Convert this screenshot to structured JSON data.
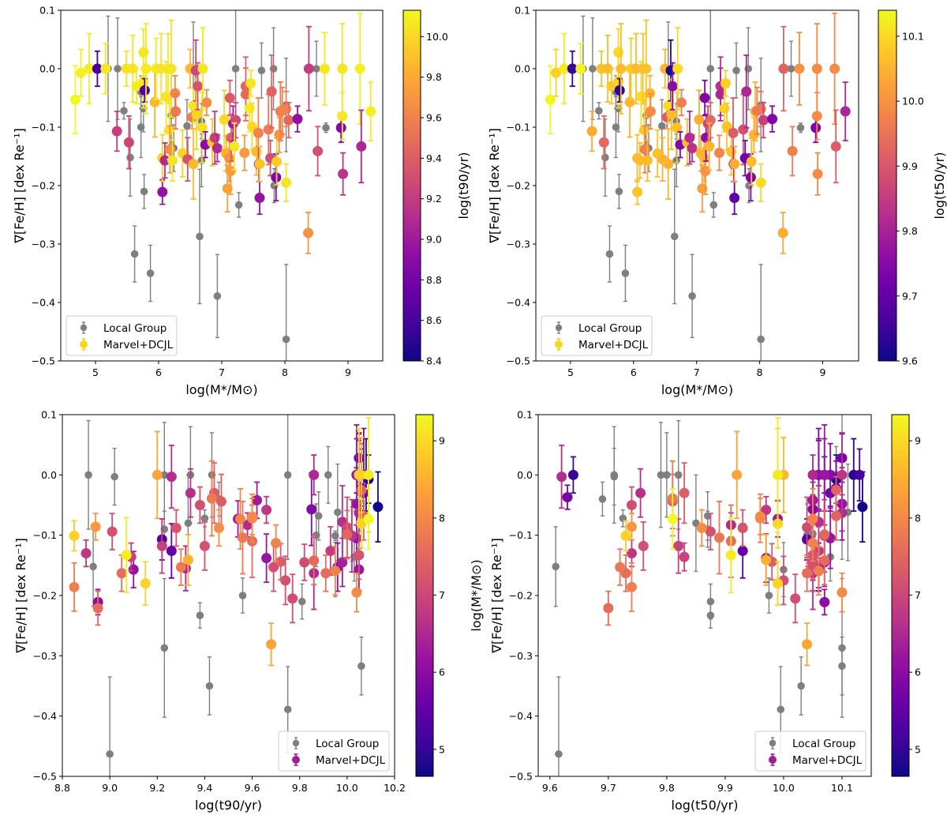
{
  "figure": {
    "legend_labels": {
      "local_group": "Local Group",
      "sim": "Marvel+DCJL"
    },
    "local_group_color": "#7f7f7f",
    "colormap": "plasma"
  },
  "chart_data": [
    {
      "type": "scatter",
      "panel": "top-left",
      "xlabel": "log(M*/M⊙)",
      "ylabel": "∇[Fe/H] [dex Re⁻¹]",
      "colorbar_label": "log(t90/yr)",
      "xlim": [
        4.45,
        9.55
      ],
      "ylim": [
        -0.5,
        0.1
      ],
      "clim": [
        8.4,
        10.13
      ],
      "xticks": [
        "5",
        "6",
        "7",
        "8",
        "9"
      ],
      "xtick_values": [
        5,
        6,
        7,
        8,
        9
      ],
      "yticks": [
        "0.1",
        "0.0",
        "−0.1",
        "−0.2",
        "−0.3",
        "−0.4",
        "−0.5"
      ],
      "ytick_values": [
        0.1,
        0.0,
        -0.1,
        -0.2,
        -0.3,
        -0.4,
        -0.5
      ],
      "cticks": [
        "8.4",
        "8.6",
        "8.8",
        "9.0",
        "9.2",
        "9.4",
        "9.6",
        "9.8",
        "10.0"
      ],
      "ctick_values": [
        8.4,
        8.6,
        8.8,
        9.0,
        9.2,
        9.4,
        9.6,
        9.8,
        10.0
      ],
      "x_field": "logM",
      "c_field": "t90",
      "legend_position": "lower-left",
      "legend_sim_marker_color": "#f6d819"
    },
    {
      "type": "scatter",
      "panel": "top-right",
      "xlabel": "log(M*/M⊙)",
      "ylabel": "∇[Fe/H] [dex Re⁻¹]",
      "colorbar_label": "log(t50/yr)",
      "xlim": [
        4.45,
        9.57
      ],
      "ylim": [
        -0.5,
        0.1
      ],
      "clim": [
        9.6,
        10.14
      ],
      "xticks": [
        "5",
        "6",
        "7",
        "8",
        "9"
      ],
      "xtick_values": [
        5,
        6,
        7,
        8,
        9
      ],
      "yticks": [
        "0.1",
        "0.0",
        "−0.1",
        "−0.2",
        "−0.3",
        "−0.4",
        "−0.5"
      ],
      "ytick_values": [
        0.1,
        0.0,
        -0.1,
        -0.2,
        -0.3,
        -0.4,
        -0.5
      ],
      "cticks": [
        "9.6",
        "9.7",
        "9.8",
        "9.9",
        "10.0",
        "10.1"
      ],
      "ctick_values": [
        9.6,
        9.7,
        9.8,
        9.9,
        10.0,
        10.1
      ],
      "x_field": "logM",
      "c_field": "t50",
      "legend_position": "lower-left",
      "legend_sim_marker_color": "#f6d819"
    },
    {
      "type": "scatter",
      "panel": "bottom-left",
      "xlabel": "log(t90/yr)",
      "ylabel": "∇[Fe/H] [dex Re⁻¹]",
      "colorbar_label": "log(M*/M⊙)",
      "xlim": [
        8.8,
        10.2
      ],
      "ylim": [
        -0.5,
        0.1
      ],
      "clim": [
        4.65,
        9.34
      ],
      "xticks": [
        "8.8",
        "9.0",
        "9.2",
        "9.4",
        "9.6",
        "9.8",
        "10.0",
        "10.2"
      ],
      "xtick_values": [
        8.8,
        9.0,
        9.2,
        9.4,
        9.6,
        9.8,
        10.0,
        10.2
      ],
      "yticks": [
        "0.1",
        "0.0",
        "−0.1",
        "−0.2",
        "−0.3",
        "−0.4",
        "−0.5"
      ],
      "ytick_values": [
        0.1,
        0.0,
        -0.1,
        -0.2,
        -0.3,
        -0.4,
        -0.5
      ],
      "cticks": [
        "5",
        "6",
        "7",
        "8",
        "9"
      ],
      "ctick_values": [
        5,
        6,
        7,
        8,
        9
      ],
      "x_field": "t90",
      "c_field": "logM",
      "legend_position": "lower-right",
      "legend_sim_marker_color": "#a01d95"
    },
    {
      "type": "scatter",
      "panel": "bottom-right",
      "xlabel": "log(t50/yr)",
      "ylabel": "∇[Fe/H] [dex Re⁻¹]",
      "colorbar_label": "log(M*/M⊙)",
      "xlim": [
        9.58,
        10.15
      ],
      "ylim": [
        -0.5,
        0.1
      ],
      "clim": [
        4.65,
        9.34
      ],
      "xticks": [
        "9.6",
        "9.7",
        "9.8",
        "9.9",
        "10.0",
        "10.1"
      ],
      "xtick_values": [
        9.6,
        9.7,
        9.8,
        9.9,
        10.0,
        10.1
      ],
      "yticks": [
        "0.1",
        "0.0",
        "−0.1",
        "−0.2",
        "−0.3",
        "−0.4",
        "−0.5"
      ],
      "ytick_values": [
        0.1,
        0.0,
        -0.1,
        -0.2,
        -0.3,
        -0.4,
        -0.5
      ],
      "cticks": [
        "5",
        "6",
        "7",
        "8",
        "9"
      ],
      "ctick_values": [
        5,
        6,
        7,
        8,
        9
      ],
      "x_field": "t50",
      "c_field": "logM",
      "legend_position": "lower-right",
      "legend_sim_marker_color": "#a01d95"
    }
  ],
  "series": {
    "local_group": [
      {
        "logM": 5.2,
        "t90": 8.91,
        "t50": 9.82,
        "y": 0.0,
        "err": 0.09
      },
      {
        "logM": 5.35,
        "t90": 9.23,
        "t50": 9.79,
        "y": 0.0,
        "err": 0.087
      },
      {
        "logM": 5.45,
        "t90": 9.4,
        "t50": 9.725,
        "y": -0.072,
        "err": 0.014
      },
      {
        "logM": 5.55,
        "t90": 8.93,
        "t50": 9.61,
        "y": -0.152,
        "err": 0.066
      },
      {
        "logM": 5.62,
        "t90": 10.06,
        "t50": 10.1,
        "y": -0.317,
        "err": 0.048
      },
      {
        "logM": 5.72,
        "t90": 9.87,
        "t50": 10.04,
        "y": -0.1,
        "err": 0.052
      },
      {
        "logM": 5.72,
        "t90": 9.46,
        "t50": 9.69,
        "y": -0.04,
        "err": 0.028
      },
      {
        "logM": 5.76,
        "t90": 9.88,
        "t50": 9.87,
        "y": -0.068,
        "err": 0.04
      },
      {
        "logM": 5.77,
        "t90": 9.81,
        "t50": 9.875,
        "y": -0.21,
        "err": 0.029
      },
      {
        "logM": 5.87,
        "t90": 9.42,
        "t50": 10.03,
        "y": -0.35,
        "err": 0.048
      },
      {
        "logM": 6.2,
        "t90": 9.33,
        "t50": 9.85,
        "y": -0.08,
        "err": 0.08
      },
      {
        "logM": 6.24,
        "t90": 10.03,
        "t50": 10.08,
        "y": -0.136,
        "err": 0.04
      },
      {
        "logM": 6.45,
        "t90": 10.02,
        "t50": 10.05,
        "y": -0.098,
        "err": 0.045
      },
      {
        "logM": 6.55,
        "t90": 9.34,
        "t50": 9.71,
        "y": 0.0,
        "err": 0.08
      },
      {
        "logM": 6.65,
        "t90": 9.23,
        "t50": 10.1,
        "y": -0.287,
        "err": 0.115
      },
      {
        "logM": 6.68,
        "t90": 9.95,
        "t50": 10.0,
        "y": -0.157,
        "err": 0.045
      },
      {
        "logM": 6.68,
        "t90": 9.23,
        "t50": 9.87,
        "y": -0.09,
        "err": 0.03
      },
      {
        "logM": 6.93,
        "t90": 9.75,
        "t50": 9.995,
        "y": -0.389,
        "err": 0.071
      },
      {
        "logM": 7.22,
        "t90": 9.75,
        "t50": 10.1,
        "y": 0.0,
        "err": 0.14
      },
      {
        "logM": 7.27,
        "t90": 9.38,
        "t50": 9.875,
        "y": -0.233,
        "err": 0.021
      },
      {
        "logM": 7.63,
        "t90": 9.02,
        "t50": 9.71,
        "y": -0.003,
        "err": 0.047
      },
      {
        "logM": 7.82,
        "t90": 9.43,
        "t50": 9.8,
        "y": 0.0,
        "err": 0.07
      },
      {
        "logM": 7.83,
        "t90": 9.56,
        "t50": 9.975,
        "y": -0.2,
        "err": 0.029
      },
      {
        "logM": 8.02,
        "t90": 9.0,
        "t50": 9.615,
        "y": -0.463,
        "err": 0.128
      },
      {
        "logM": 8.02,
        "t90": 9.96,
        "t50": 10.11,
        "y": -0.062,
        "err": 0.08
      },
      {
        "logM": 8.5,
        "t90": 9.92,
        "t50": 10.09,
        "y": 0.0,
        "err": 0.047
      },
      {
        "logM": 8.65,
        "t90": 9.95,
        "t50": 10.04,
        "y": -0.101,
        "err": 0.008
      }
    ],
    "sim": [
      {
        "logM": 4.68,
        "t90": 10.13,
        "t50": 10.135,
        "y": -0.053,
        "err": 0.058
      },
      {
        "logM": 4.77,
        "t90": 10.09,
        "t50": 10.09,
        "y": -0.007,
        "err": 0.04
      },
      {
        "logM": 4.9,
        "t90": 10.08,
        "t50": 10.12,
        "y": 0.0,
        "err": 0.06
      },
      {
        "logM": 5.03,
        "t90": 8.6,
        "t50": 9.64,
        "y": 0.0,
        "err": 0.03
      },
      {
        "logM": 5.16,
        "t90": 10.06,
        "t50": 10.13,
        "y": 0.0,
        "err": 0.043
      },
      {
        "logM": 5.34,
        "t90": 9.22,
        "t50": 10.04,
        "y": -0.107,
        "err": 0.034
      },
      {
        "logM": 5.49,
        "t90": 10.04,
        "t50": 10.07,
        "y": 0.0,
        "err": 0.03
      },
      {
        "logM": 5.53,
        "t90": 9.26,
        "t50": 9.93,
        "y": -0.126,
        "err": 0.045
      },
      {
        "logM": 5.59,
        "t90": 10.05,
        "t50": 10.06,
        "y": 0.0,
        "err": 0.057
      },
      {
        "logM": 5.65,
        "t90": 10.07,
        "t50": 10.08,
        "y": -0.03,
        "err": 0.03
      },
      {
        "logM": 5.76,
        "t90": 10.05,
        "t50": 10.1,
        "y": 0.028,
        "err": 0.04
      },
      {
        "logM": 5.76,
        "t90": 10.06,
        "t50": 10.09,
        "y": -0.022,
        "err": 0.045
      },
      {
        "logM": 5.78,
        "t90": 8.65,
        "t50": 9.63,
        "y": -0.037,
        "err": 0.02
      },
      {
        "logM": 5.8,
        "t90": 10.07,
        "t50": 10.06,
        "y": 0.0,
        "err": 0.077
      },
      {
        "logM": 5.94,
        "t90": 9.85,
        "t50": 10.05,
        "y": -0.057,
        "err": 0.06
      },
      {
        "logM": 5.96,
        "t90": 10.06,
        "t50": 10.08,
        "y": 0.0,
        "err": 0.052
      },
      {
        "logM": 6.04,
        "t90": 10.04,
        "t50": 10.06,
        "y": 0.0,
        "err": 0.06
      },
      {
        "logM": 6.06,
        "t90": 8.95,
        "t50": 10.07,
        "y": -0.211,
        "err": 0.021
      },
      {
        "logM": 6.06,
        "t90": 9.96,
        "t50": 10.06,
        "y": -0.153,
        "err": 0.04
      },
      {
        "logM": 6.1,
        "t90": 9.1,
        "t50": 10.06,
        "y": -0.157,
        "err": 0.03
      },
      {
        "logM": 6.12,
        "t90": 10.04,
        "t50": 10.1,
        "y": -0.048,
        "err": 0.06
      },
      {
        "logM": 6.15,
        "t90": 10.05,
        "t50": 10.07,
        "y": 0.0,
        "err": 0.06
      },
      {
        "logM": 6.17,
        "t90": 10.04,
        "t50": 10.08,
        "y": -0.105,
        "err": 0.05
      },
      {
        "logM": 6.18,
        "t90": 9.66,
        "t50": 9.97,
        "y": -0.138,
        "err": 0.04
      },
      {
        "logM": 6.2,
        "t90": 10.04,
        "t50": 10.07,
        "y": 0.0,
        "err": 0.083
      },
      {
        "logM": 6.22,
        "t90": 10.05,
        "t50": 10.06,
        "y": -0.157,
        "err": 0.035
      },
      {
        "logM": 6.26,
        "t90": 9.62,
        "t50": 10.05,
        "y": -0.042,
        "err": 0.03
      },
      {
        "logM": 6.27,
        "t90": 9.54,
        "t50": 9.99,
        "y": -0.073,
        "err": 0.03
      },
      {
        "logM": 6.38,
        "t90": 9.98,
        "t50": 10.07,
        "y": -0.145,
        "err": 0.04
      },
      {
        "logM": 6.46,
        "t90": 9.32,
        "t50": 10.05,
        "y": -0.155,
        "err": 0.037
      },
      {
        "logM": 6.5,
        "t90": 9.86,
        "t50": 10.05,
        "y": 0.0,
        "err": 0.033
      },
      {
        "logM": 6.53,
        "t90": 9.58,
        "t50": 9.91,
        "y": -0.083,
        "err": 0.02
      },
      {
        "logM": 6.55,
        "t90": 10.05,
        "t50": 10.1,
        "y": -0.063,
        "err": 0.03
      },
      {
        "logM": 6.55,
        "t90": 9.86,
        "t50": 10.05,
        "y": -0.163,
        "err": 0.06
      },
      {
        "logM": 6.59,
        "t90": 9.26,
        "t50": 9.62,
        "y": -0.003,
        "err": 0.052
      },
      {
        "logM": 6.6,
        "t90": 9.98,
        "t50": 10.06,
        "y": -0.078,
        "err": 0.06
      },
      {
        "logM": 6.62,
        "t90": 9.34,
        "t50": 9.755,
        "y": -0.03,
        "err": 0.04
      },
      {
        "logM": 6.7,
        "t90": 10.05,
        "t50": 10.1,
        "y": 0.0,
        "err": 0.07
      },
      {
        "logM": 6.69,
        "t90": 10.02,
        "t50": 10.07,
        "y": -0.101,
        "err": 0.06
      },
      {
        "logM": 6.74,
        "t90": 8.9,
        "t50": 9.74,
        "y": -0.13,
        "err": 0.022
      },
      {
        "logM": 6.76,
        "t90": 9.66,
        "t50": 9.97,
        "y": -0.058,
        "err": 0.022
      },
      {
        "logM": 6.85,
        "t90": 9.93,
        "t50": 10.06,
        "y": -0.126,
        "err": 0.04
      },
      {
        "logM": 6.89,
        "t90": 9.22,
        "t50": 9.82,
        "y": -0.118,
        "err": 0.045
      },
      {
        "logM": 6.93,
        "t90": 9.09,
        "t50": 9.83,
        "y": -0.136,
        "err": 0.023
      },
      {
        "logM": 7.04,
        "t90": 10.0,
        "t50": 10.04,
        "y": -0.087,
        "err": 0.05
      },
      {
        "logM": 7.07,
        "t90": 9.82,
        "t50": 10.05,
        "y": -0.145,
        "err": 0.03
      },
      {
        "logM": 7.09,
        "t90": 9.77,
        "t50": 10.02,
        "y": -0.205,
        "err": 0.04
      },
      {
        "logM": 7.12,
        "t90": 9.69,
        "t50": 10.05,
        "y": -0.153,
        "err": 0.04
      },
      {
        "logM": 7.13,
        "t90": 9.38,
        "t50": 9.74,
        "y": -0.05,
        "err": 0.03
      },
      {
        "logM": 7.14,
        "t90": 9.74,
        "t50": 10.0,
        "y": -0.175,
        "err": 0.04
      },
      {
        "logM": 7.15,
        "t90": 9.4,
        "t50": 9.76,
        "y": -0.118,
        "err": 0.04
      },
      {
        "logM": 7.18,
        "t90": 9.01,
        "t50": 9.875,
        "y": -0.094,
        "err": 0.03
      },
      {
        "logM": 7.22,
        "t90": 9.28,
        "t50": 9.93,
        "y": -0.088,
        "err": 0.03
      },
      {
        "logM": 7.2,
        "t90": 10.05,
        "t50": 10.05,
        "y": -0.133,
        "err": 0.04
      },
      {
        "logM": 7.36,
        "t90": 9.72,
        "t50": 9.98,
        "y": -0.144,
        "err": 0.03
      },
      {
        "logM": 7.38,
        "t90": 9.44,
        "t50": 9.83,
        "y": -0.03,
        "err": 0.05
      },
      {
        "logM": 7.38,
        "t90": 9.47,
        "t50": 9.81,
        "y": -0.044,
        "err": 0.045
      },
      {
        "logM": 7.44,
        "t90": 10.07,
        "t50": 10.09,
        "y": -0.068,
        "err": 0.04
      },
      {
        "logM": 7.46,
        "t90": 10.06,
        "t50": 10.09,
        "y": -0.025,
        "err": 0.022
      },
      {
        "logM": 7.48,
        "t90": 10.0,
        "t50": 10.07,
        "y": -0.099,
        "err": 0.04
      },
      {
        "logM": 7.55,
        "t90": 9.86,
        "t50": 10.07,
        "y": -0.142,
        "err": 0.04
      },
      {
        "logM": 7.58,
        "t90": 9.6,
        "t50": 9.91,
        "y": -0.11,
        "err": 0.06
      },
      {
        "logM": 7.59,
        "t90": 9.05,
        "t50": 9.73,
        "y": -0.163,
        "err": 0.03
      },
      {
        "logM": 7.6,
        "t90": 8.95,
        "t50": 9.7,
        "y": -0.221,
        "err": 0.028
      },
      {
        "logM": 7.6,
        "t90": 9.91,
        "t50": 10.04,
        "y": -0.163,
        "err": 0.03
      },
      {
        "logM": 7.74,
        "t90": 9.56,
        "t50": 9.89,
        "y": -0.104,
        "err": 0.06
      },
      {
        "logM": 7.77,
        "t90": 9.3,
        "t50": 9.72,
        "y": -0.153,
        "err": 0.03
      },
      {
        "logM": 7.79,
        "t90": 9.43,
        "t50": 9.81,
        "y": -0.039,
        "err": 0.062
      },
      {
        "logM": 7.86,
        "t90": 8.85,
        "t50": 9.74,
        "y": -0.186,
        "err": 0.04
      },
      {
        "logM": 7.87,
        "t90": 9.95,
        "t50": 10.06,
        "y": -0.159,
        "err": 0.04
      },
      {
        "logM": 7.91,
        "t90": 9.7,
        "t50": 10.05,
        "y": -0.113,
        "err": 0.03
      },
      {
        "logM": 7.93,
        "t90": 9.55,
        "t50": 10.05,
        "y": -0.073,
        "err": 0.05
      },
      {
        "logM": 7.96,
        "t90": 9.6,
        "t50": 9.96,
        "y": -0.072,
        "err": 0.04
      },
      {
        "logM": 8.02,
        "t90": 9.6,
        "t50": 9.96,
        "y": -0.069,
        "err": 0.03
      },
      {
        "logM": 8.02,
        "t90": 10.04,
        "t50": 10.1,
        "y": -0.195,
        "err": 0.032
      },
      {
        "logM": 8.06,
        "t90": 9.46,
        "t50": 9.86,
        "y": -0.088,
        "err": 0.03
      },
      {
        "logM": 8.2,
        "t90": 8.94,
        "t50": 9.74,
        "y": -0.086,
        "err": 0.022
      },
      {
        "logM": 8.37,
        "t90": 9.68,
        "t50": 10.04,
        "y": -0.281,
        "err": 0.035
      },
      {
        "logM": 8.38,
        "t90": 9.2,
        "t50": 9.92,
        "y": 0.0,
        "err": 0.072
      },
      {
        "logM": 8.52,
        "t90": 9.33,
        "t50": 9.97,
        "y": -0.141,
        "err": 0.042
      },
      {
        "logM": 8.63,
        "t90": 10.06,
        "t50": 10.0,
        "y": 0.0,
        "err": 0.062
      },
      {
        "logM": 8.89,
        "t90": 8.85,
        "t50": 9.73,
        "y": -0.101,
        "err": 0.025
      },
      {
        "logM": 8.91,
        "t90": 10.05,
        "t50": 9.99,
        "y": 0.0,
        "err": 0.077
      },
      {
        "logM": 8.91,
        "t90": 10.06,
        "t50": 9.99,
        "y": -0.081,
        "err": 0.04
      },
      {
        "logM": 8.92,
        "t90": 9.15,
        "t50": 9.99,
        "y": -0.18,
        "err": 0.036
      },
      {
        "logM": 9.19,
        "t90": 10.09,
        "t50": 9.99,
        "y": 0.0,
        "err": 0.095
      },
      {
        "logM": 9.21,
        "t90": 9.07,
        "t50": 9.91,
        "y": -0.133,
        "err": 0.062
      },
      {
        "logM": 9.36,
        "t90": 10.09,
        "t50": 9.81,
        "y": -0.073,
        "err": 0.05
      }
    ]
  }
}
